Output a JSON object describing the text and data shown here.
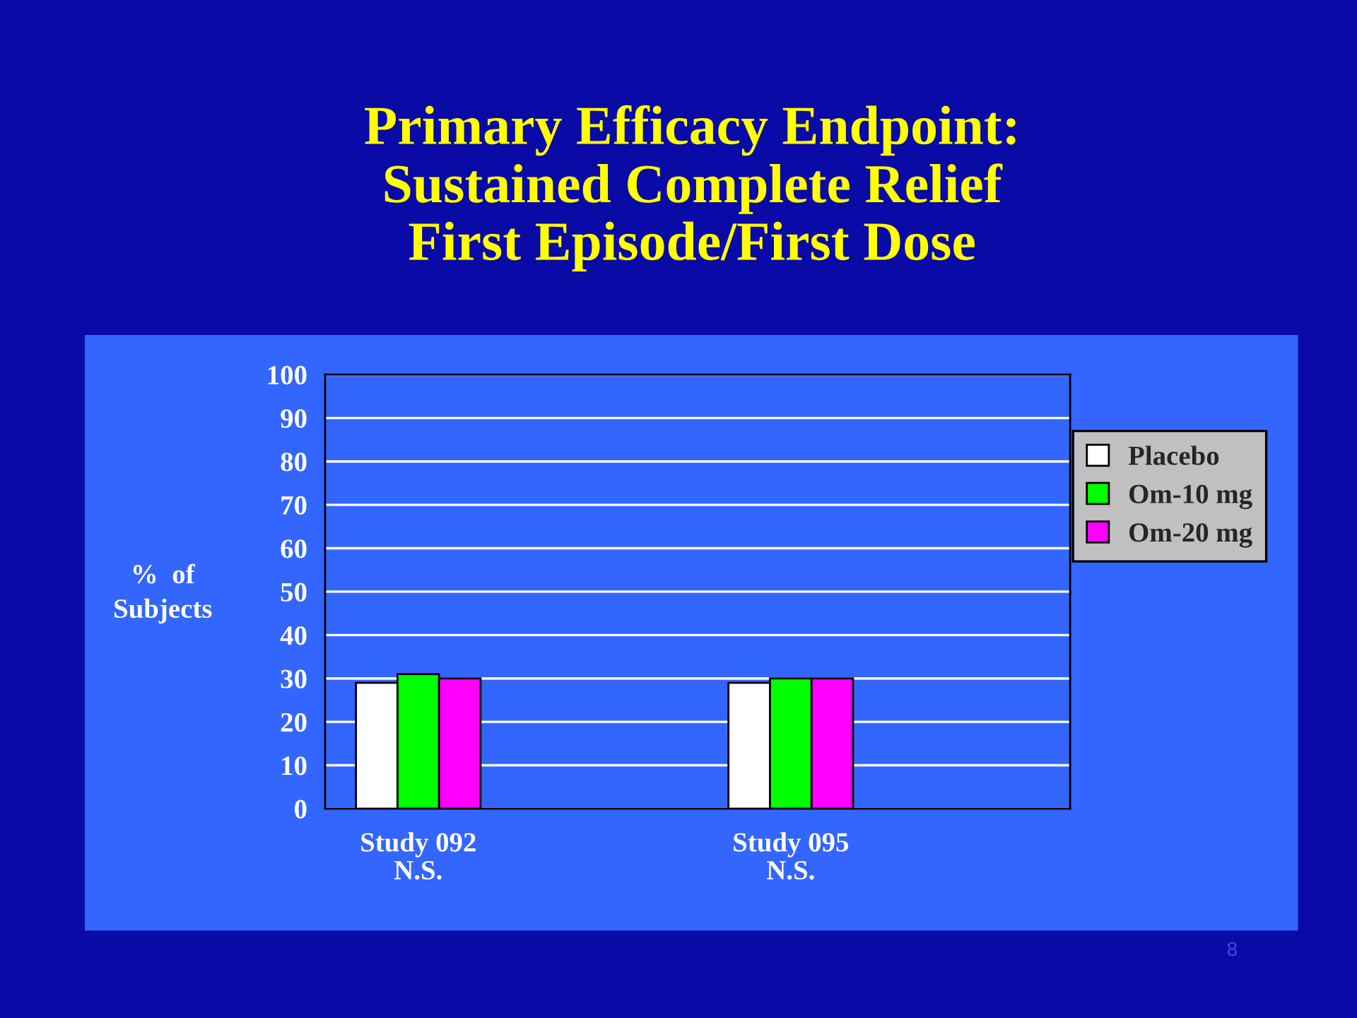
{
  "chart_data": {
    "type": "bar",
    "title": "Primary Efficacy Endpoint:\nSustained Complete Relief\nFirst Episode/First Dose",
    "ylabel": "%  of\nSubjects",
    "categories": [
      "Study 092\nN.S.",
      null,
      "Study 095\nN.S.",
      null
    ],
    "series": [
      {
        "name": "Placebo",
        "color": "#ffffff",
        "values": [
          29,
          null,
          29,
          null
        ]
      },
      {
        "name": "Om-10 mg",
        "color": "#00ff00",
        "values": [
          31,
          null,
          30,
          null
        ]
      },
      {
        "name": "Om-20 mg",
        "color": "#ff00ff",
        "values": [
          30,
          null,
          30,
          null
        ]
      }
    ],
    "ylim": [
      0,
      100
    ],
    "yticks": [
      0,
      10,
      20,
      30,
      40,
      50,
      60,
      70,
      80,
      90,
      100
    ],
    "grid": "y",
    "legend": "right",
    "annotations": [
      "8"
    ]
  }
}
